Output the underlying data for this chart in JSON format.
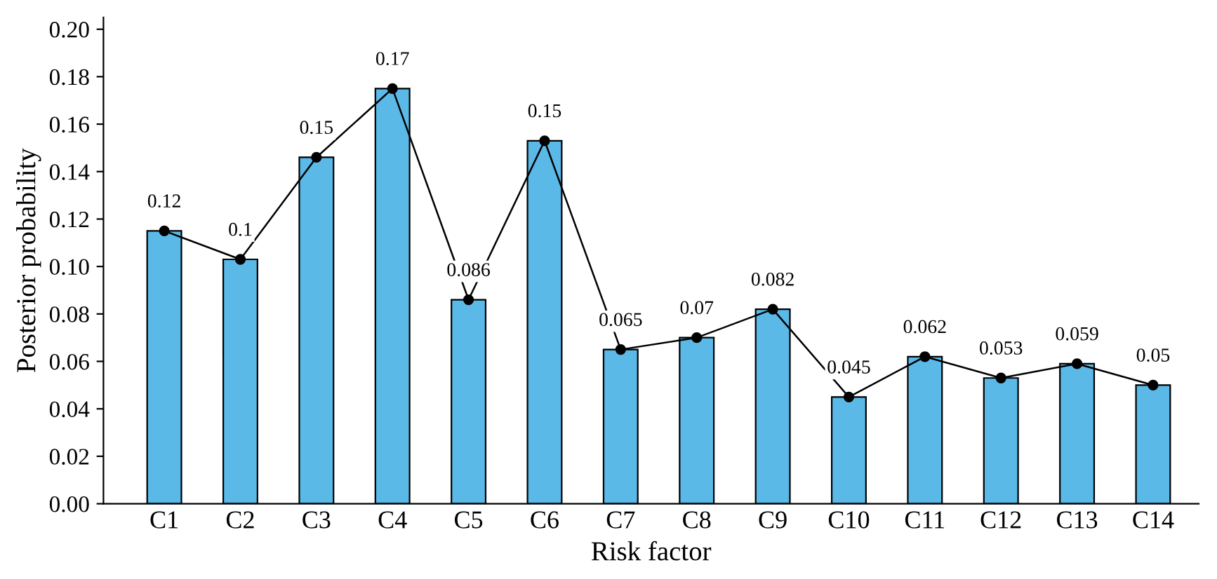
{
  "chart_data": {
    "type": "bar",
    "xlabel": "Risk factor",
    "ylabel": "Posterior probability",
    "categories": [
      "C1",
      "C2",
      "C3",
      "C4",
      "C5",
      "C6",
      "C7",
      "C8",
      "C9",
      "C10",
      "C11",
      "C12",
      "C13",
      "C14"
    ],
    "series": [
      {
        "color": "#5bb9e8",
        "values": [
          0.115,
          0.103,
          0.146,
          0.175,
          0.086,
          0.153,
          0.065,
          0.07,
          0.082,
          0.045,
          0.062,
          0.053,
          0.059,
          0.05
        ],
        "value_labels": [
          "0.12",
          "0.1",
          "0.15",
          "0.17",
          "0.086",
          "0.15",
          "0.065",
          "0.07",
          "0.082",
          "0.045",
          "0.062",
          "0.053",
          "0.059",
          "0.05"
        ]
      },
      {
        "type": "line",
        "color": "#000000",
        "marker": "circle",
        "line_style": "solid",
        "values": [
          0.115,
          0.103,
          0.146,
          0.175,
          0.086,
          0.153,
          0.065,
          0.07,
          0.082,
          0.045,
          0.062,
          0.053,
          0.059,
          0.05
        ]
      }
    ],
    "ylim": [
      0,
      0.205
    ],
    "yticks": [
      {
        "value": 0,
        "label": "0.00"
      },
      {
        "value": 0.02,
        "label": "0.02"
      },
      {
        "value": 0.04,
        "label": "0.04"
      },
      {
        "value": 0.06,
        "label": "0.06"
      },
      {
        "value": 0.08,
        "label": "0.08"
      },
      {
        "value": 0.1,
        "label": "0.10"
      },
      {
        "value": 0.12,
        "label": "0.12"
      },
      {
        "value": 0.14,
        "label": "0.14"
      },
      {
        "value": 0.16,
        "label": "0.16"
      },
      {
        "value": 0.18,
        "label": "0.18"
      },
      {
        "value": 0.2,
        "label": "0.20"
      }
    ],
    "grid": false,
    "legend": false
  }
}
